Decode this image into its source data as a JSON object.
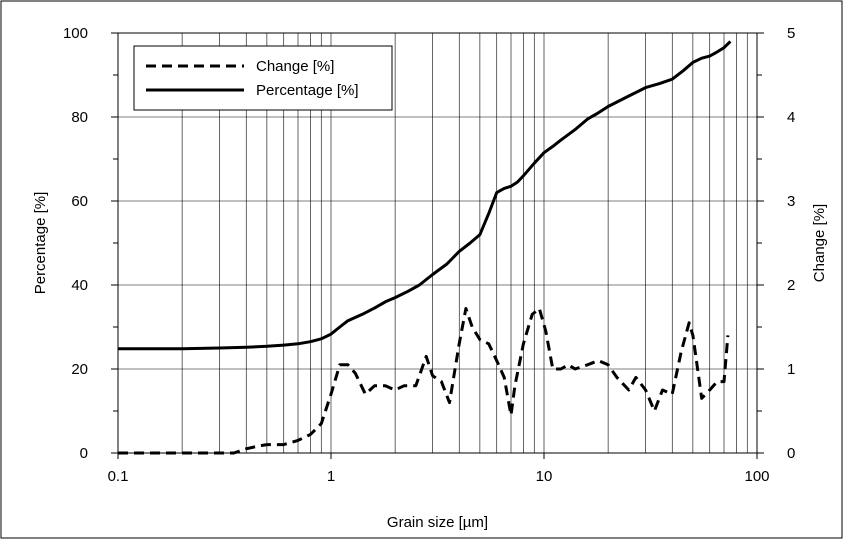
{
  "chart_data": {
    "type": "line",
    "xlabel": "Grain size [µm]",
    "ylabel_left": "Percentage [%]",
    "ylabel_right": "Change [%]",
    "x_scale": "log",
    "xlim": [
      0.1,
      100
    ],
    "ylim_left": [
      0,
      100
    ],
    "ylim_right": [
      0,
      5
    ],
    "x_ticks": [
      {
        "value": 0.1,
        "label": "0.1"
      },
      {
        "value": 1,
        "label": "1"
      },
      {
        "value": 10,
        "label": "10"
      },
      {
        "value": 100,
        "label": "100"
      }
    ],
    "y_ticks_left": [
      "0",
      "20",
      "40",
      "60",
      "80",
      "100"
    ],
    "y_ticks_right": [
      "0",
      "1",
      "2",
      "3",
      "4",
      "5"
    ],
    "grid": true,
    "legend_position": "top-left",
    "series": [
      {
        "name": "Change [%]",
        "axis": "right",
        "style": "dashed",
        "x": [
          0.1,
          0.15,
          0.2,
          0.25,
          0.3,
          0.35,
          0.4,
          0.45,
          0.5,
          0.6,
          0.7,
          0.8,
          0.9,
          1.0,
          1.1,
          1.2,
          1.3,
          1.45,
          1.6,
          1.8,
          2.0,
          2.2,
          2.5,
          2.8,
          3.0,
          3.3,
          3.6,
          4.0,
          4.3,
          4.6,
          5.0,
          5.5,
          6.0,
          6.5,
          7.0,
          7.3,
          8.0,
          8.8,
          9.5,
          10.2,
          11.0,
          12.0,
          13.0,
          14.0,
          16.0,
          18.0,
          20.0,
          22.0,
          25.0,
          27.0,
          30.0,
          33.0,
          36.0,
          40.0,
          44.0,
          48.0,
          50.0,
          55.0,
          60.0,
          65.0,
          70.0,
          73.0
        ],
        "y": [
          0.0,
          0.0,
          0.0,
          0.0,
          0.0,
          0.0,
          0.05,
          0.08,
          0.1,
          0.1,
          0.15,
          0.22,
          0.35,
          0.7,
          1.05,
          1.05,
          0.95,
          0.7,
          0.8,
          0.8,
          0.75,
          0.8,
          0.8,
          1.15,
          0.92,
          0.85,
          0.6,
          1.3,
          1.72,
          1.5,
          1.35,
          1.3,
          1.1,
          0.9,
          0.45,
          0.8,
          1.3,
          1.65,
          1.72,
          1.45,
          1.0,
          1.0,
          1.05,
          1.0,
          1.05,
          1.1,
          1.05,
          0.9,
          0.75,
          0.9,
          0.75,
          0.5,
          0.75,
          0.7,
          1.2,
          1.55,
          1.4,
          0.65,
          0.75,
          0.85,
          0.85,
          1.4
        ]
      },
      {
        "name": "Percentage [%]",
        "axis": "left",
        "style": "solid",
        "x": [
          0.1,
          0.2,
          0.3,
          0.4,
          0.5,
          0.6,
          0.7,
          0.8,
          0.9,
          1.0,
          1.1,
          1.2,
          1.4,
          1.6,
          1.8,
          2.0,
          2.3,
          2.6,
          3.0,
          3.5,
          4.0,
          4.5,
          5.0,
          5.5,
          6.0,
          6.5,
          7.0,
          7.5,
          8.0,
          9.0,
          10.0,
          11.0,
          12.0,
          14.0,
          16.0,
          18.0,
          20.0,
          25.0,
          30.0,
          35.0,
          40.0,
          45.0,
          50.0,
          55.0,
          60.0,
          65.0,
          70.0,
          75.0
        ],
        "y": [
          24.8,
          24.8,
          25.0,
          25.2,
          25.4,
          25.7,
          26.0,
          26.5,
          27.2,
          28.3,
          30.0,
          31.5,
          33.0,
          34.5,
          36.0,
          37.0,
          38.5,
          40.0,
          42.5,
          45.0,
          48.0,
          50.0,
          52.0,
          57.0,
          62.0,
          63.0,
          63.5,
          64.5,
          66.0,
          69.0,
          71.5,
          73.0,
          74.5,
          77.0,
          79.5,
          81.0,
          82.5,
          85.0,
          87.0,
          88.0,
          89.0,
          91.0,
          93.0,
          94.0,
          94.5,
          95.5,
          96.5,
          98.0
        ]
      }
    ]
  }
}
